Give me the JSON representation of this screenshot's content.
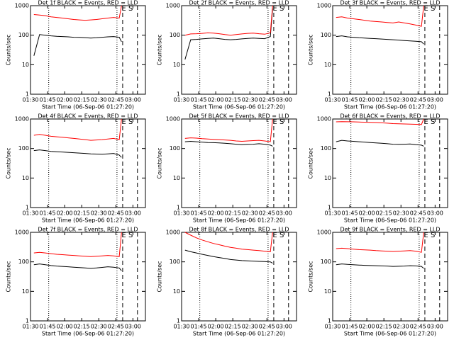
{
  "chart_data": [
    {
      "type": "line",
      "title": "Det 1f BLACK = Events, RED = LLD",
      "xlabel": "Start Time (06-Sep-06 01:27:20)",
      "ylabel": "Counts/sec",
      "ylog": true,
      "xlim": [
        "01:30",
        "03:11"
      ],
      "xticks": [
        "01:30",
        "01:45",
        "02:00",
        "02:15",
        "02:30",
        "02:45",
        "03:00"
      ],
      "ylim": [
        1,
        1000
      ],
      "yticks": [
        1,
        10,
        100,
        1000
      ],
      "x": [
        "01:33",
        "01:38",
        "01:43",
        "01:48",
        "01:53",
        "01:58",
        "02:03",
        "02:08",
        "02:13",
        "02:18",
        "02:23",
        "02:28",
        "02:33",
        "02:38",
        "02:43",
        "02:48",
        "02:50"
      ],
      "series": [
        {
          "color": "#000000",
          "values": [
            20,
            105,
            100,
            95,
            92,
            90,
            88,
            85,
            84,
            82,
            80,
            82,
            85,
            88,
            90,
            85,
            60
          ]
        },
        {
          "color": "#ff0000",
          "values": [
            500,
            480,
            460,
            420,
            400,
            380,
            360,
            340,
            330,
            320,
            330,
            340,
            360,
            380,
            400,
            380,
            1000
          ]
        }
      ],
      "vlines": [
        {
          "x": "01:46",
          "style": "dotted"
        },
        {
          "x": "02:46",
          "style": "dotted"
        },
        {
          "x": "02:51",
          "style": "dashed"
        },
        {
          "x": "03:04",
          "style": "dashed"
        }
      ],
      "annotations": [
        {
          "x": "02:52",
          "label": "E"
        },
        {
          "x": "02:58",
          "label": "S"
        }
      ]
    },
    {
      "type": "line",
      "title": "Det 2f BLACK = Events, RED = LLD",
      "xlabel": "Start Time (06-Sep-06 01:27:20)",
      "ylabel": "Counts/sec",
      "ylog": true,
      "xlim": [
        "01:30",
        "03:11"
      ],
      "xticks": [
        "01:30",
        "01:45",
        "02:00",
        "02:15",
        "02:30",
        "02:45",
        "03:00"
      ],
      "ylim": [
        1,
        1000
      ],
      "yticks": [
        1,
        10,
        100,
        1000
      ],
      "x": [
        "01:33",
        "01:38",
        "01:43",
        "01:48",
        "01:53",
        "01:58",
        "02:03",
        "02:08",
        "02:13",
        "02:18",
        "02:23",
        "02:28",
        "02:33",
        "02:38",
        "02:43",
        "02:48",
        "02:50"
      ],
      "series": [
        {
          "color": "#000000",
          "values": [
            15,
            70,
            72,
            75,
            78,
            80,
            76,
            72,
            70,
            72,
            75,
            78,
            80,
            78,
            76,
            90,
            800
          ]
        },
        {
          "color": "#ff0000",
          "values": [
            100,
            110,
            112,
            115,
            120,
            118,
            112,
            105,
            100,
            105,
            110,
            115,
            118,
            112,
            108,
            120,
            1000
          ]
        }
      ],
      "vlines": [
        {
          "x": "01:46",
          "style": "dotted"
        },
        {
          "x": "02:46",
          "style": "dotted"
        },
        {
          "x": "02:51",
          "style": "dashed"
        },
        {
          "x": "03:04",
          "style": "dashed"
        }
      ],
      "annotations": [
        {
          "x": "02:52",
          "label": "E"
        },
        {
          "x": "02:58",
          "label": "S"
        }
      ]
    },
    {
      "type": "line",
      "title": "Det 3f BLACK = Events, RED = LLD",
      "xlabel": "Start Time (06-Sep-06 01:27:20)",
      "ylabel": "Counts/sec",
      "ylog": true,
      "xlim": [
        "01:30",
        "03:11"
      ],
      "xticks": [
        "01:30",
        "01:45",
        "02:00",
        "02:15",
        "02:30",
        "02:45",
        "03:00"
      ],
      "ylim": [
        1,
        1000
      ],
      "yticks": [
        1,
        10,
        100,
        1000
      ],
      "x": [
        "01:33",
        "01:38",
        "01:43",
        "01:48",
        "01:53",
        "01:58",
        "02:03",
        "02:08",
        "02:13",
        "02:18",
        "02:23",
        "02:28",
        "02:33",
        "02:38",
        "02:43",
        "02:48",
        "02:50"
      ],
      "series": [
        {
          "color": "#000000",
          "values": [
            90,
            95,
            88,
            85,
            82,
            80,
            78,
            76,
            74,
            72,
            70,
            68,
            66,
            64,
            62,
            60,
            50
          ]
        },
        {
          "color": "#ff0000",
          "values": [
            400,
            420,
            380,
            360,
            340,
            320,
            300,
            290,
            280,
            270,
            260,
            280,
            260,
            240,
            220,
            200,
            1000
          ]
        }
      ],
      "vlines": [
        {
          "x": "01:46",
          "style": "dotted"
        },
        {
          "x": "02:46",
          "style": "dotted"
        },
        {
          "x": "02:51",
          "style": "dashed"
        },
        {
          "x": "03:04",
          "style": "dashed"
        }
      ],
      "annotations": [
        {
          "x": "02:52",
          "label": "E"
        },
        {
          "x": "02:58",
          "label": "S"
        }
      ]
    },
    {
      "type": "line",
      "title": "Det 4f BLACK = Events, RED = LLD",
      "xlabel": "Start Time (06-Sep-06 01:27:20)",
      "ylabel": "Counts/sec",
      "ylog": true,
      "xlim": [
        "01:30",
        "03:11"
      ],
      "xticks": [
        "01:30",
        "01:45",
        "02:00",
        "02:15",
        "02:30",
        "02:45",
        "03:00"
      ],
      "ylim": [
        1,
        1000
      ],
      "yticks": [
        1,
        10,
        100,
        1000
      ],
      "x": [
        "01:33",
        "01:38",
        "01:43",
        "01:48",
        "01:53",
        "01:58",
        "02:03",
        "02:08",
        "02:13",
        "02:18",
        "02:23",
        "02:28",
        "02:33",
        "02:38",
        "02:43",
        "02:48",
        "02:50"
      ],
      "series": [
        {
          "color": "#000000",
          "values": [
            85,
            90,
            85,
            80,
            78,
            76,
            74,
            72,
            70,
            68,
            66,
            65,
            64,
            66,
            68,
            60,
            50
          ]
        },
        {
          "color": "#ff0000",
          "values": [
            280,
            300,
            280,
            260,
            250,
            240,
            230,
            220,
            210,
            200,
            190,
            195,
            200,
            210,
            220,
            200,
            1000
          ]
        }
      ],
      "vlines": [
        {
          "x": "01:46",
          "style": "dotted"
        },
        {
          "x": "02:46",
          "style": "dotted"
        },
        {
          "x": "02:51",
          "style": "dashed"
        },
        {
          "x": "03:04",
          "style": "dashed"
        }
      ],
      "annotations": [
        {
          "x": "02:52",
          "label": "E"
        },
        {
          "x": "02:58",
          "label": "S"
        }
      ]
    },
    {
      "type": "line",
      "title": "Det 5f BLACK = Events, RED = LLD",
      "xlabel": "Start Time (06-Sep-06 01:27:20)",
      "ylabel": "Counts/sec",
      "ylog": true,
      "xlim": [
        "01:30",
        "03:11"
      ],
      "xticks": [
        "01:30",
        "01:45",
        "02:00",
        "02:15",
        "02:30",
        "02:45",
        "03:00"
      ],
      "ylim": [
        1,
        1000
      ],
      "yticks": [
        1,
        10,
        100,
        1000
      ],
      "x": [
        "01:33",
        "01:38",
        "01:43",
        "01:48",
        "01:53",
        "01:58",
        "02:03",
        "02:08",
        "02:13",
        "02:18",
        "02:23",
        "02:28",
        "02:33",
        "02:38",
        "02:43",
        "02:48",
        "02:50"
      ],
      "series": [
        {
          "color": "#000000",
          "values": [
            170,
            175,
            170,
            165,
            160,
            158,
            155,
            150,
            145,
            140,
            135,
            138,
            140,
            145,
            140,
            130,
            120
          ]
        },
        {
          "color": "#ff0000",
          "values": [
            220,
            230,
            225,
            215,
            210,
            205,
            200,
            195,
            190,
            180,
            175,
            180,
            185,
            190,
            180,
            170,
            1000
          ]
        }
      ],
      "vlines": [
        {
          "x": "01:46",
          "style": "dotted"
        },
        {
          "x": "02:46",
          "style": "dotted"
        },
        {
          "x": "02:51",
          "style": "dashed"
        },
        {
          "x": "03:04",
          "style": "dashed"
        }
      ],
      "annotations": [
        {
          "x": "02:52",
          "label": "E"
        },
        {
          "x": "02:58",
          "label": "S"
        }
      ]
    },
    {
      "type": "line",
      "title": "Det 6f BLACK = Events, RED = LLD",
      "xlabel": "Start Time (06-Sep-06 01:27:20)",
      "ylabel": "Counts/sec",
      "ylog": true,
      "xlim": [
        "01:30",
        "03:11"
      ],
      "xticks": [
        "01:30",
        "01:45",
        "02:00",
        "02:15",
        "02:30",
        "02:45",
        "03:00"
      ],
      "ylim": [
        1,
        1000
      ],
      "yticks": [
        1,
        10,
        100,
        1000
      ],
      "x": [
        "01:33",
        "01:38",
        "01:43",
        "01:48",
        "01:53",
        "01:58",
        "02:03",
        "02:08",
        "02:13",
        "02:18",
        "02:23",
        "02:28",
        "02:33",
        "02:38",
        "02:43",
        "02:48",
        "02:50"
      ],
      "series": [
        {
          "color": "#000000",
          "values": [
            170,
            190,
            180,
            175,
            170,
            165,
            160,
            155,
            150,
            145,
            140,
            138,
            140,
            142,
            135,
            130,
            120
          ]
        },
        {
          "color": "#ff0000",
          "values": [
            800,
            810,
            805,
            800,
            790,
            780,
            770,
            760,
            740,
            720,
            700,
            690,
            680,
            670,
            660,
            650,
            1000
          ]
        }
      ],
      "vlines": [
        {
          "x": "01:46",
          "style": "dotted"
        },
        {
          "x": "02:46",
          "style": "dotted"
        },
        {
          "x": "02:51",
          "style": "dashed"
        },
        {
          "x": "03:04",
          "style": "dashed"
        }
      ],
      "annotations": [
        {
          "x": "02:52",
          "label": "E"
        },
        {
          "x": "02:58",
          "label": "S"
        }
      ]
    },
    {
      "type": "line",
      "title": "Det 7f BLACK = Events, RED = LLD",
      "xlabel": "Start Time (06-Sep-06 01:27:20)",
      "ylabel": "Counts/sec",
      "ylog": true,
      "xlim": [
        "01:30",
        "03:11"
      ],
      "xticks": [
        "01:30",
        "01:45",
        "02:00",
        "02:15",
        "02:30",
        "02:45",
        "03:00"
      ],
      "ylim": [
        1,
        1000
      ],
      "yticks": [
        1,
        10,
        100,
        1000
      ],
      "x": [
        "01:33",
        "01:38",
        "01:43",
        "01:48",
        "01:53",
        "01:58",
        "02:03",
        "02:08",
        "02:13",
        "02:18",
        "02:23",
        "02:28",
        "02:33",
        "02:38",
        "02:43",
        "02:48",
        "02:50"
      ],
      "series": [
        {
          "color": "#000000",
          "values": [
            80,
            85,
            80,
            75,
            72,
            70,
            68,
            66,
            64,
            62,
            60,
            62,
            65,
            68,
            66,
            62,
            50
          ]
        },
        {
          "color": "#ff0000",
          "values": [
            200,
            210,
            200,
            190,
            180,
            175,
            170,
            165,
            160,
            155,
            150,
            155,
            160,
            165,
            160,
            150,
            1000
          ]
        }
      ],
      "vlines": [
        {
          "x": "01:46",
          "style": "dotted"
        },
        {
          "x": "02:46",
          "style": "dotted"
        },
        {
          "x": "02:51",
          "style": "dashed"
        },
        {
          "x": "03:04",
          "style": "dashed"
        }
      ],
      "annotations": [
        {
          "x": "02:52",
          "label": "E"
        },
        {
          "x": "02:58",
          "label": "S"
        }
      ]
    },
    {
      "type": "line",
      "title": "Det 8f BLACK = Events, RED = LLD",
      "xlabel": "Start Time (06-Sep-06 01:27:20)",
      "ylabel": "Counts/sec",
      "ylog": true,
      "xlim": [
        "01:30",
        "03:11"
      ],
      "xticks": [
        "01:30",
        "01:45",
        "02:00",
        "02:15",
        "02:30",
        "02:45",
        "03:00"
      ],
      "ylim": [
        1,
        1000
      ],
      "yticks": [
        1,
        10,
        100,
        1000
      ],
      "x": [
        "01:33",
        "01:38",
        "01:43",
        "01:48",
        "01:53",
        "01:58",
        "02:03",
        "02:08",
        "02:13",
        "02:18",
        "02:23",
        "02:28",
        "02:33",
        "02:38",
        "02:43",
        "02:48",
        "02:50"
      ],
      "series": [
        {
          "color": "#000000",
          "values": [
            250,
            220,
            200,
            180,
            165,
            150,
            140,
            130,
            120,
            115,
            110,
            108,
            106,
            104,
            102,
            100,
            90
          ]
        },
        {
          "color": "#ff0000",
          "values": [
            1000,
            800,
            650,
            550,
            480,
            420,
            380,
            340,
            310,
            290,
            270,
            260,
            250,
            240,
            230,
            220,
            1000
          ]
        }
      ],
      "vlines": [
        {
          "x": "01:46",
          "style": "dotted"
        },
        {
          "x": "02:46",
          "style": "dotted"
        },
        {
          "x": "02:51",
          "style": "dashed"
        },
        {
          "x": "03:04",
          "style": "dashed"
        }
      ],
      "annotations": [
        {
          "x": "02:52",
          "label": "E"
        },
        {
          "x": "02:58",
          "label": "S"
        }
      ]
    },
    {
      "type": "line",
      "title": "Det 9f BLACK = Events, RED = LLD",
      "xlabel": "Start Time (06-Sep-06 01:27:20)",
      "ylabel": "Counts/sec",
      "ylog": true,
      "xlim": [
        "01:30",
        "03:11"
      ],
      "xticks": [
        "01:30",
        "01:45",
        "02:00",
        "02:15",
        "02:30",
        "02:45",
        "03:00"
      ],
      "ylim": [
        1,
        1000
      ],
      "yticks": [
        1,
        10,
        100,
        1000
      ],
      "x": [
        "01:33",
        "01:38",
        "01:43",
        "01:48",
        "01:53",
        "01:58",
        "02:03",
        "02:08",
        "02:13",
        "02:18",
        "02:23",
        "02:28",
        "02:33",
        "02:38",
        "02:43",
        "02:48",
        "02:50"
      ],
      "series": [
        {
          "color": "#000000",
          "values": [
            80,
            85,
            82,
            80,
            78,
            76,
            75,
            74,
            73,
            72,
            70,
            71,
            72,
            74,
            73,
            70,
            60
          ]
        },
        {
          "color": "#ff0000",
          "values": [
            280,
            290,
            280,
            270,
            260,
            255,
            250,
            240,
            235,
            230,
            225,
            230,
            235,
            240,
            230,
            210,
            1000
          ]
        }
      ],
      "vlines": [
        {
          "x": "01:46",
          "style": "dotted"
        },
        {
          "x": "02:46",
          "style": "dotted"
        },
        {
          "x": "02:51",
          "style": "dashed"
        },
        {
          "x": "03:04",
          "style": "dashed"
        }
      ],
      "annotations": [
        {
          "x": "02:52",
          "label": "E"
        },
        {
          "x": "02:58",
          "label": "S"
        }
      ]
    }
  ]
}
